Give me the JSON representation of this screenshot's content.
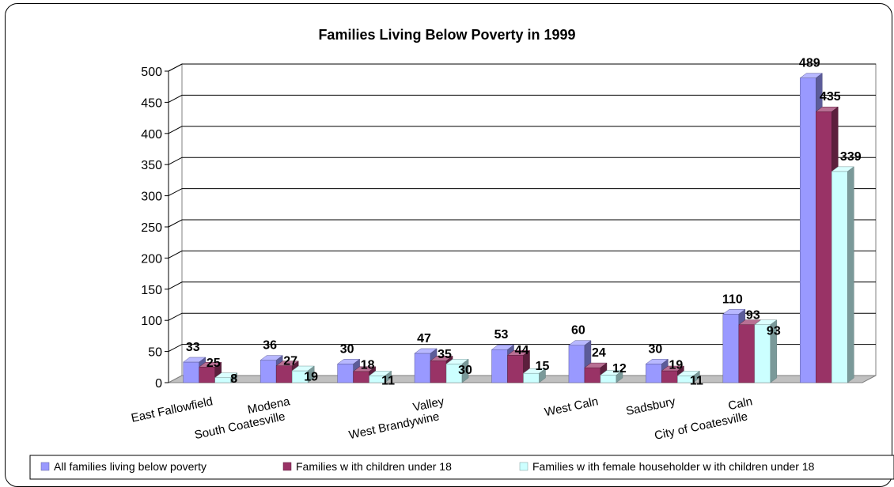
{
  "chart_data": {
    "type": "bar",
    "title": "Families Living Below Poverty in 1999",
    "xlabel": "",
    "ylabel": "",
    "ylim": [
      0,
      500
    ],
    "yticks": [
      "0",
      "50",
      "100",
      "150",
      "200",
      "250",
      "300",
      "350",
      "400",
      "450",
      "500"
    ],
    "grid": true,
    "legend_position": "bottom",
    "category_labels": [
      [
        "East Fallowfield"
      ],
      [
        "Modena",
        "South Coatesville"
      ],
      [],
      [
        "Valley",
        "West Brandywine"
      ],
      [],
      [
        "West Caln"
      ],
      [
        "Sadsbury"
      ],
      [
        "Caln",
        "City of Coatesville"
      ],
      []
    ],
    "series": [
      {
        "name": "All families living below  poverty",
        "color": "#9999ff",
        "values": [
          33,
          36,
          30,
          47,
          53,
          60,
          30,
          110,
          489
        ]
      },
      {
        "name": "Families w ith children under 18",
        "color": "#993366",
        "values": [
          25,
          27,
          18,
          35,
          44,
          24,
          19,
          93,
          435
        ]
      },
      {
        "name": "Families w ith female householder w ith children under 18",
        "color": "#ccffff",
        "values": [
          8,
          19,
          11,
          30,
          15,
          12,
          11,
          93,
          339
        ]
      }
    ]
  }
}
